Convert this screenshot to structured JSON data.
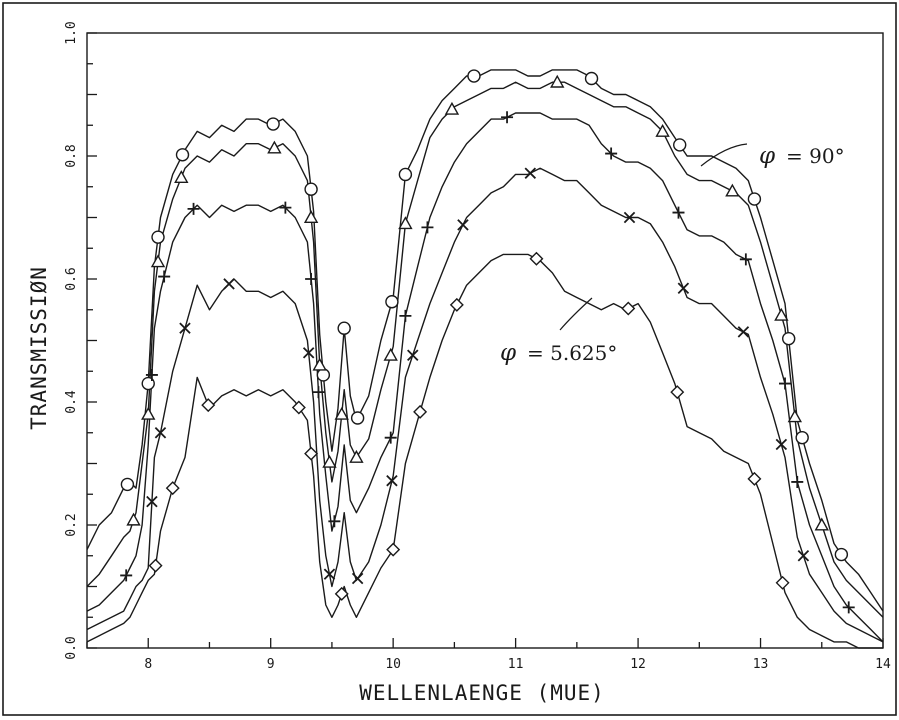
{
  "chart_data": {
    "type": "line",
    "title": "",
    "xlabel": "WELLENLAENGE  (MUE)",
    "ylabel": "TRANSMISSIØN",
    "xlim": [
      7.5,
      14.0
    ],
    "ylim": [
      0.0,
      1.0
    ],
    "xticks": [
      "8",
      "9",
      "10",
      "11",
      "12",
      "13",
      "14"
    ],
    "yticks": [
      "0.0",
      "0.2",
      "0.4",
      "0.6",
      "0.8",
      "1.0"
    ],
    "grid": false,
    "annotations": [
      {
        "phi": "φ",
        "text": "= 90°",
        "series": "circle"
      },
      {
        "phi": "φ",
        "text": "= 5.625°",
        "series": "diamond"
      }
    ],
    "series": [
      {
        "marker": "circle",
        "x": [
          7.5,
          7.6,
          7.7,
          7.8,
          7.85,
          7.9,
          7.95,
          8.0,
          8.05,
          8.1,
          8.2,
          8.3,
          8.4,
          8.5,
          8.6,
          8.7,
          8.8,
          8.9,
          9.0,
          9.1,
          9.2,
          9.3,
          9.35,
          9.4,
          9.45,
          9.5,
          9.55,
          9.6,
          9.65,
          9.7,
          9.8,
          9.9,
          10.0,
          10.1,
          10.2,
          10.3,
          10.4,
          10.5,
          10.6,
          10.7,
          10.8,
          10.9,
          11.0,
          11.1,
          11.2,
          11.3,
          11.4,
          11.5,
          11.6,
          11.7,
          11.8,
          11.9,
          12.0,
          12.1,
          12.2,
          12.3,
          12.4,
          12.5,
          12.6,
          12.7,
          12.8,
          12.9,
          13.0,
          13.1,
          13.2,
          13.3,
          13.4,
          13.5,
          13.6,
          13.7,
          13.8,
          13.9,
          14.0
        ],
        "y": [
          0.16,
          0.2,
          0.22,
          0.26,
          0.27,
          0.26,
          0.33,
          0.43,
          0.62,
          0.7,
          0.77,
          0.81,
          0.84,
          0.83,
          0.85,
          0.84,
          0.86,
          0.86,
          0.85,
          0.86,
          0.84,
          0.8,
          0.71,
          0.51,
          0.4,
          0.32,
          0.39,
          0.52,
          0.41,
          0.37,
          0.41,
          0.5,
          0.57,
          0.77,
          0.81,
          0.86,
          0.89,
          0.91,
          0.93,
          0.93,
          0.94,
          0.94,
          0.94,
          0.93,
          0.93,
          0.94,
          0.94,
          0.94,
          0.93,
          0.91,
          0.9,
          0.9,
          0.89,
          0.88,
          0.86,
          0.83,
          0.8,
          0.8,
          0.8,
          0.79,
          0.78,
          0.76,
          0.7,
          0.63,
          0.56,
          0.37,
          0.3,
          0.24,
          0.17,
          0.14,
          0.12,
          0.09,
          0.06
        ],
        "marker_x": [
          7.83,
          8.0,
          8.08,
          8.28,
          9.02,
          9.33,
          9.43,
          9.6,
          9.71,
          9.99,
          10.1,
          10.66,
          11.62,
          12.34,
          12.95,
          13.23,
          13.34,
          13.66
        ]
      },
      {
        "marker": "triangle",
        "x": [
          7.5,
          7.6,
          7.7,
          7.8,
          7.85,
          7.9,
          7.95,
          8.0,
          8.05,
          8.1,
          8.2,
          8.3,
          8.4,
          8.5,
          8.6,
          8.7,
          8.8,
          8.9,
          9.0,
          9.1,
          9.2,
          9.3,
          9.35,
          9.4,
          9.45,
          9.5,
          9.55,
          9.6,
          9.65,
          9.7,
          9.8,
          9.9,
          10.0,
          10.1,
          10.2,
          10.3,
          10.4,
          10.5,
          10.6,
          10.7,
          10.8,
          10.9,
          11.0,
          11.1,
          11.2,
          11.3,
          11.4,
          11.5,
          11.6,
          11.7,
          11.8,
          11.9,
          12.0,
          12.1,
          12.2,
          12.3,
          12.4,
          12.5,
          12.6,
          12.7,
          12.8,
          12.9,
          13.0,
          13.1,
          13.2,
          13.3,
          13.4,
          13.5,
          13.6,
          13.7,
          13.8,
          13.9,
          14.0
        ],
        "y": [
          0.1,
          0.12,
          0.15,
          0.18,
          0.19,
          0.22,
          0.3,
          0.38,
          0.58,
          0.66,
          0.73,
          0.78,
          0.8,
          0.79,
          0.81,
          0.8,
          0.82,
          0.82,
          0.81,
          0.82,
          0.8,
          0.76,
          0.66,
          0.46,
          0.35,
          0.27,
          0.32,
          0.42,
          0.33,
          0.31,
          0.34,
          0.42,
          0.49,
          0.69,
          0.76,
          0.83,
          0.86,
          0.88,
          0.89,
          0.9,
          0.91,
          0.91,
          0.92,
          0.91,
          0.91,
          0.92,
          0.92,
          0.91,
          0.9,
          0.89,
          0.88,
          0.88,
          0.87,
          0.86,
          0.84,
          0.8,
          0.77,
          0.76,
          0.76,
          0.75,
          0.74,
          0.72,
          0.66,
          0.59,
          0.52,
          0.34,
          0.26,
          0.2,
          0.14,
          0.11,
          0.09,
          0.07,
          0.05
        ],
        "marker_x": [
          7.88,
          8.0,
          8.08,
          8.27,
          9.03,
          9.33,
          9.4,
          9.48,
          9.58,
          9.7,
          9.98,
          10.1,
          10.48,
          11.34,
          12.2,
          12.77,
          13.17,
          13.28,
          13.5
        ]
      },
      {
        "marker": "plus",
        "x": [
          7.5,
          7.6,
          7.7,
          7.8,
          7.85,
          7.9,
          7.95,
          8.0,
          8.05,
          8.1,
          8.2,
          8.3,
          8.4,
          8.5,
          8.6,
          8.7,
          8.8,
          8.9,
          9.0,
          9.1,
          9.2,
          9.3,
          9.35,
          9.4,
          9.45,
          9.5,
          9.55,
          9.6,
          9.65,
          9.7,
          9.8,
          9.9,
          10.0,
          10.1,
          10.2,
          10.3,
          10.4,
          10.5,
          10.6,
          10.7,
          10.8,
          10.9,
          11.0,
          11.1,
          11.2,
          11.3,
          11.4,
          11.5,
          11.6,
          11.7,
          11.8,
          11.9,
          12.0,
          12.1,
          12.2,
          12.3,
          12.4,
          12.5,
          12.6,
          12.7,
          12.8,
          12.9,
          13.0,
          13.1,
          13.2,
          13.3,
          13.4,
          13.5,
          13.6,
          13.7,
          13.8,
          13.9,
          14.0
        ],
        "y": [
          0.06,
          0.07,
          0.09,
          0.11,
          0.13,
          0.15,
          0.2,
          0.33,
          0.52,
          0.58,
          0.66,
          0.7,
          0.72,
          0.7,
          0.72,
          0.71,
          0.72,
          0.72,
          0.71,
          0.72,
          0.7,
          0.66,
          0.56,
          0.38,
          0.28,
          0.19,
          0.23,
          0.33,
          0.24,
          0.22,
          0.26,
          0.31,
          0.35,
          0.54,
          0.62,
          0.7,
          0.75,
          0.79,
          0.82,
          0.84,
          0.86,
          0.86,
          0.87,
          0.87,
          0.87,
          0.86,
          0.86,
          0.86,
          0.85,
          0.82,
          0.8,
          0.79,
          0.79,
          0.78,
          0.76,
          0.72,
          0.68,
          0.67,
          0.67,
          0.66,
          0.64,
          0.63,
          0.56,
          0.5,
          0.43,
          0.27,
          0.2,
          0.15,
          0.1,
          0.07,
          0.05,
          0.03,
          0.01
        ],
        "marker_x": [
          7.82,
          8.03,
          8.13,
          8.37,
          9.12,
          9.33,
          9.39,
          9.52,
          9.98,
          10.1,
          10.28,
          10.93,
          11.78,
          12.33,
          12.88,
          13.2,
          13.3,
          13.72
        ]
      },
      {
        "marker": "x",
        "x": [
          7.5,
          7.6,
          7.7,
          7.8,
          7.85,
          7.9,
          7.95,
          8.0,
          8.05,
          8.1,
          8.2,
          8.3,
          8.4,
          8.5,
          8.6,
          8.7,
          8.8,
          8.9,
          9.0,
          9.1,
          9.2,
          9.3,
          9.35,
          9.4,
          9.45,
          9.5,
          9.55,
          9.6,
          9.65,
          9.7,
          9.8,
          9.9,
          10.0,
          10.1,
          10.2,
          10.3,
          10.4,
          10.5,
          10.6,
          10.7,
          10.8,
          10.9,
          11.0,
          11.1,
          11.2,
          11.3,
          11.4,
          11.5,
          11.6,
          11.7,
          11.8,
          11.9,
          12.0,
          12.1,
          12.2,
          12.3,
          12.4,
          12.5,
          12.6,
          12.7,
          12.8,
          12.9,
          13.0,
          13.1,
          13.2,
          13.3,
          13.4,
          13.5,
          13.6,
          13.7,
          13.8,
          13.9,
          14.0
        ],
        "y": [
          0.03,
          0.04,
          0.05,
          0.06,
          0.08,
          0.1,
          0.11,
          0.13,
          0.31,
          0.35,
          0.45,
          0.52,
          0.59,
          0.55,
          0.58,
          0.6,
          0.58,
          0.58,
          0.57,
          0.58,
          0.56,
          0.5,
          0.4,
          0.24,
          0.15,
          0.1,
          0.14,
          0.22,
          0.14,
          0.11,
          0.14,
          0.2,
          0.28,
          0.44,
          0.5,
          0.56,
          0.61,
          0.66,
          0.7,
          0.72,
          0.74,
          0.75,
          0.77,
          0.77,
          0.78,
          0.77,
          0.76,
          0.76,
          0.74,
          0.72,
          0.71,
          0.7,
          0.7,
          0.69,
          0.66,
          0.62,
          0.57,
          0.56,
          0.56,
          0.54,
          0.52,
          0.51,
          0.44,
          0.38,
          0.31,
          0.18,
          0.12,
          0.09,
          0.06,
          0.04,
          0.03,
          0.02,
          0.01
        ],
        "marker_x": [
          8.03,
          8.1,
          8.3,
          8.66,
          9.31,
          9.48,
          9.71,
          9.99,
          10.16,
          10.57,
          11.12,
          11.93,
          12.37,
          12.86,
          13.17,
          13.35
        ]
      },
      {
        "marker": "diamond",
        "x": [
          7.5,
          7.6,
          7.7,
          7.8,
          7.85,
          7.9,
          7.95,
          8.0,
          8.05,
          8.1,
          8.2,
          8.3,
          8.4,
          8.5,
          8.6,
          8.7,
          8.8,
          8.9,
          9.0,
          9.1,
          9.2,
          9.3,
          9.35,
          9.4,
          9.45,
          9.5,
          9.55,
          9.6,
          9.65,
          9.7,
          9.8,
          9.9,
          10.0,
          10.1,
          10.2,
          10.3,
          10.4,
          10.5,
          10.6,
          10.7,
          10.8,
          10.9,
          11.0,
          11.1,
          11.2,
          11.3,
          11.4,
          11.5,
          11.6,
          11.7,
          11.8,
          11.9,
          12.0,
          12.1,
          12.2,
          12.3,
          12.4,
          12.5,
          12.6,
          12.7,
          12.8,
          12.9,
          13.0,
          13.1,
          13.2,
          13.3,
          13.4,
          13.5,
          13.6,
          13.7,
          13.8,
          13.9,
          14.0
        ],
        "y": [
          0.01,
          0.02,
          0.03,
          0.04,
          0.05,
          0.07,
          0.09,
          0.11,
          0.12,
          0.19,
          0.26,
          0.31,
          0.44,
          0.39,
          0.41,
          0.42,
          0.41,
          0.42,
          0.41,
          0.42,
          0.4,
          0.37,
          0.28,
          0.14,
          0.07,
          0.05,
          0.07,
          0.1,
          0.07,
          0.05,
          0.09,
          0.13,
          0.16,
          0.3,
          0.37,
          0.44,
          0.5,
          0.55,
          0.59,
          0.61,
          0.63,
          0.64,
          0.64,
          0.64,
          0.63,
          0.61,
          0.58,
          0.57,
          0.56,
          0.55,
          0.56,
          0.55,
          0.56,
          0.53,
          0.48,
          0.43,
          0.36,
          0.35,
          0.34,
          0.32,
          0.31,
          0.3,
          0.25,
          0.17,
          0.09,
          0.05,
          0.03,
          0.02,
          0.01,
          0.01,
          0.0,
          0.0,
          0.0
        ],
        "marker_x": [
          8.06,
          8.2,
          8.49,
          9.23,
          9.33,
          9.58,
          10.0,
          10.22,
          10.52,
          11.17,
          11.92,
          12.32,
          12.95,
          13.18
        ]
      }
    ]
  }
}
